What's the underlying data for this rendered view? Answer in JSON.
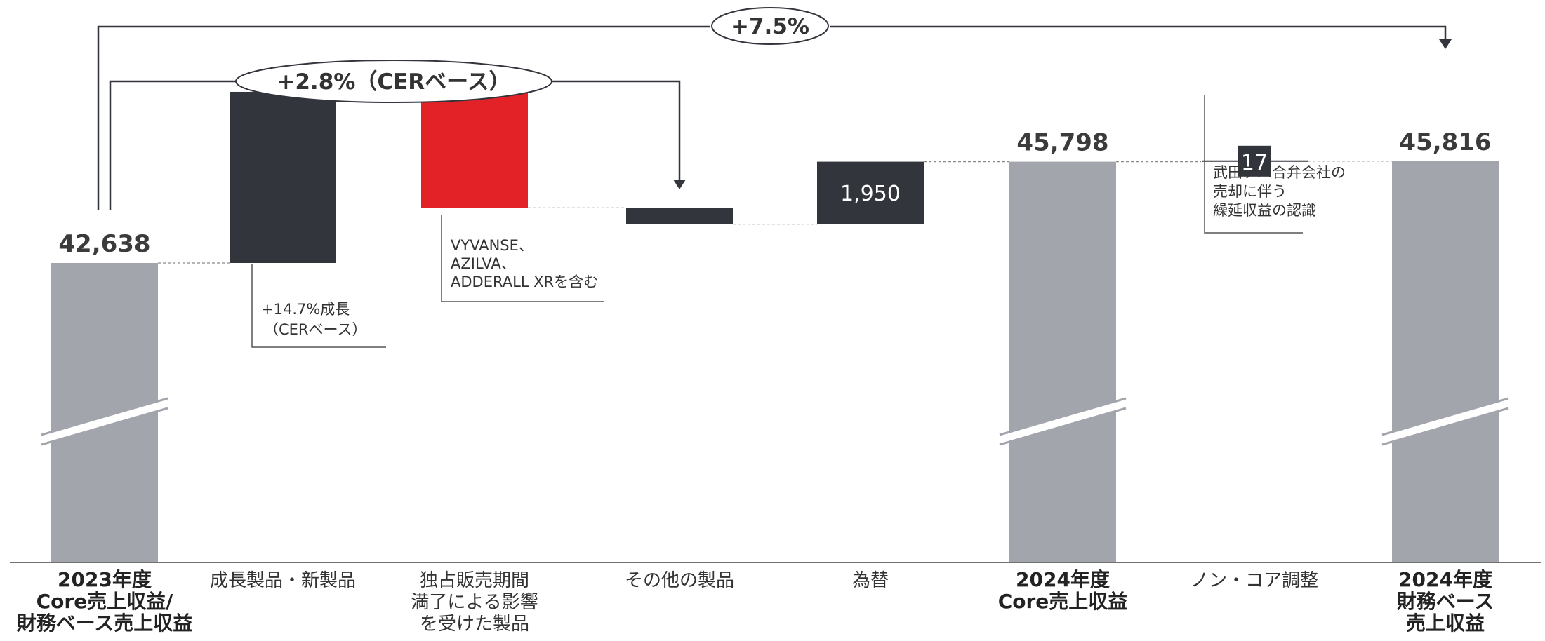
{
  "chart_data": {
    "type": "waterfall",
    "categories": [
      [
        "2023年度",
        "Core売上収益/",
        "財務ベース売上収益"
      ],
      [
        "成長製品・新製品"
      ],
      [
        "独占販売期間",
        "満了による影響",
        "を受けた製品"
      ],
      [
        "その他の製品"
      ],
      [
        "為替"
      ],
      [
        "2024年度",
        "Core売上収益"
      ],
      [
        "ノン・コア調整"
      ],
      [
        "2024年度",
        "財務ベース",
        "売上収益"
      ]
    ],
    "category_bold": [
      true,
      false,
      false,
      false,
      false,
      true,
      false,
      true
    ],
    "steps": [
      {
        "kind": "total",
        "value": 42638,
        "label": "42,638",
        "color": "#a3a5ad"
      },
      {
        "kind": "increase",
        "value": 5340,
        "label": "",
        "color": "#33353d"
      },
      {
        "kind": "decrease",
        "value": -3620,
        "label": "",
        "color": "#e32228"
      },
      {
        "kind": "decrease",
        "value": -510,
        "label": "",
        "color": "#33353d"
      },
      {
        "kind": "increase",
        "value": 1950,
        "label": "1,950",
        "color": "#33353d"
      },
      {
        "kind": "total",
        "value": 45798,
        "label": "45,798",
        "color": "#a3a5ad"
      },
      {
        "kind": "increase",
        "value": 17,
        "label": "17",
        "color": "#33353d"
      },
      {
        "kind": "total",
        "value": 45816,
        "label": "45,816",
        "color": "#a3a5ad"
      }
    ],
    "axis_break": true,
    "annotations": {
      "growth_total": "+7.5%",
      "growth_cer": "+2.8%（CERベース）",
      "growth_products": [
        "+14.7%成長",
        "（CERベース）"
      ],
      "loe_products": [
        "VYVANSE、",
        "AZILVA、",
        "ADDERALL XRを含む"
      ],
      "non_core": [
        "武田テバ合弁会社の",
        "売却に伴う",
        "繰延収益の認識"
      ]
    }
  }
}
